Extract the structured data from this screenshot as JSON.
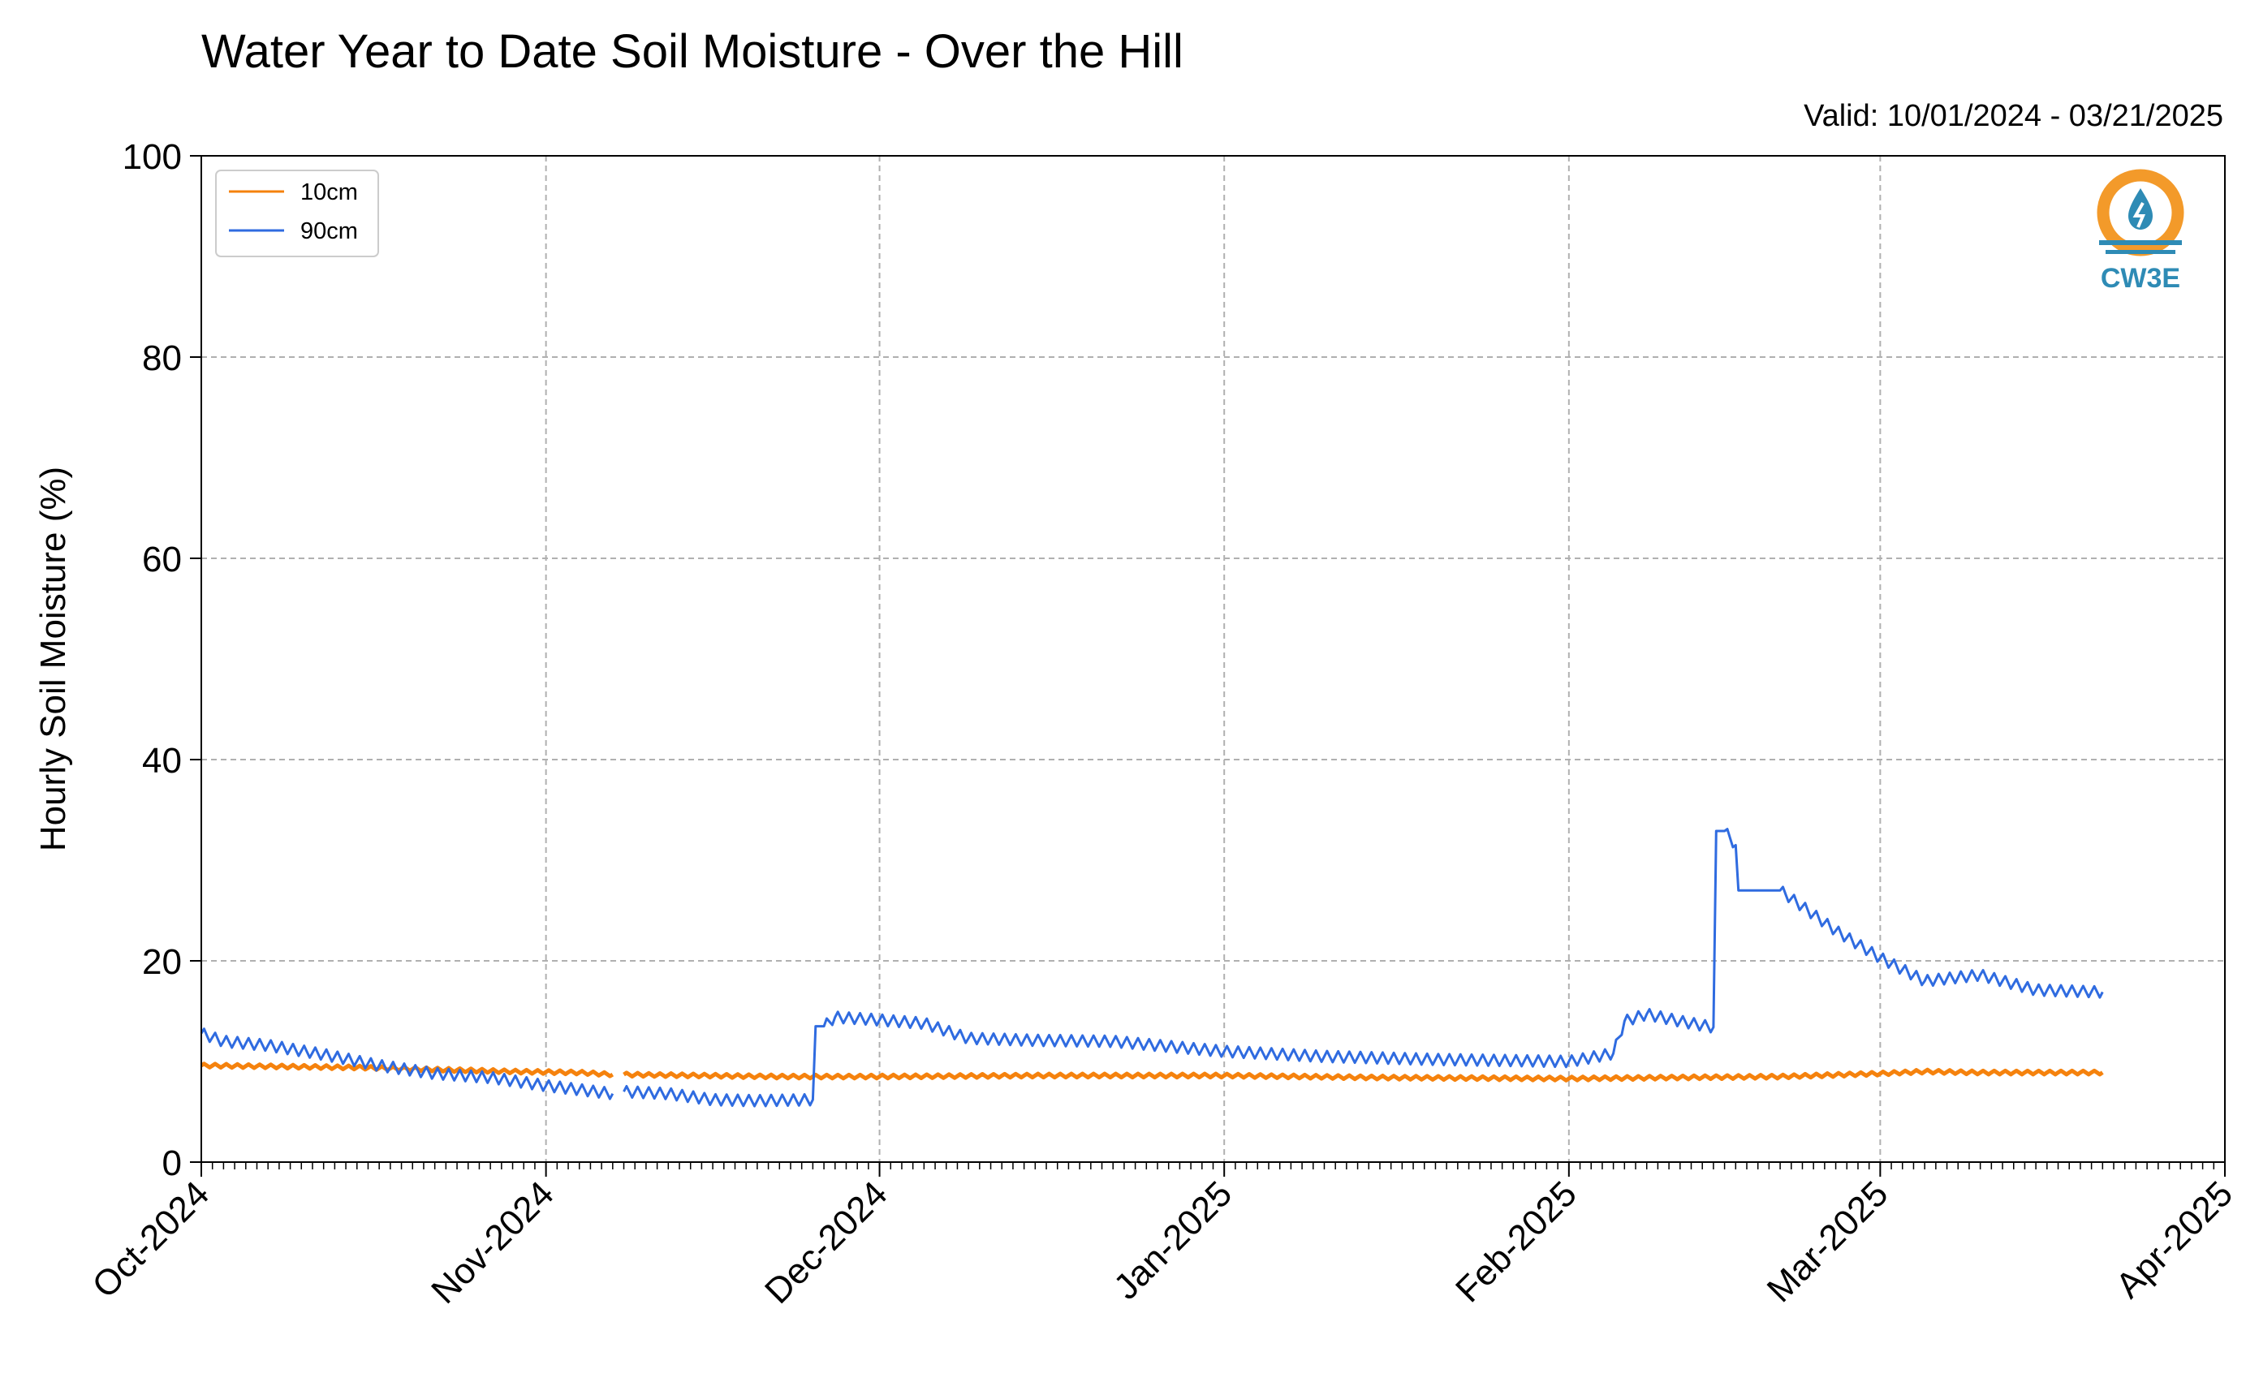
{
  "title": "Water Year to Date Soil Moisture - Over the Hill",
  "subtitle": "Valid: 10/01/2024 - 03/21/2025",
  "logo": {
    "text": "CW3E",
    "ring_color": "#F39A2A",
    "drop_color": "#2E8BB5"
  },
  "chart_data": {
    "type": "line",
    "title": "Water Year to Date Soil Moisture - Over the Hill",
    "ylabel": "Hourly Soil Moisture (%)",
    "xlabel": "",
    "ylim": [
      0,
      100
    ],
    "yticks": [
      0,
      20,
      40,
      60,
      80,
      100
    ],
    "xlim": [
      "2024-10-01",
      "2025-04-01"
    ],
    "xticks": [
      {
        "date": "2024-10-01",
        "label": "Oct-2024"
      },
      {
        "date": "2024-11-01",
        "label": "Nov-2024"
      },
      {
        "date": "2024-12-01",
        "label": "Dec-2024"
      },
      {
        "date": "2025-01-01",
        "label": "Jan-2025"
      },
      {
        "date": "2025-02-01",
        "label": "Feb-2025"
      },
      {
        "date": "2025-03-01",
        "label": "Mar-2025"
      },
      {
        "date": "2025-04-01",
        "label": "Apr-2025"
      }
    ],
    "grid": true,
    "legend": "top-left",
    "series": [
      {
        "name": "10cm",
        "color": "#F5820D",
        "segments": [
          {
            "x": [
              "2024-10-01",
              "2024-10-08",
              "2024-10-15",
              "2024-10-22",
              "2024-10-29",
              "2024-11-04",
              "2024-11-07"
            ],
            "y": [
              9.6,
              9.5,
              9.4,
              9.2,
              9.0,
              8.9,
              8.7
            ]
          },
          {
            "x": [
              "2024-11-08",
              "2024-11-15",
              "2024-11-22",
              "2024-12-01",
              "2024-12-15",
              "2025-01-01",
              "2025-01-15",
              "2025-02-01",
              "2025-02-10",
              "2025-02-20",
              "2025-03-01",
              "2025-03-05",
              "2025-03-10",
              "2025-03-21"
            ],
            "y": [
              8.7,
              8.6,
              8.5,
              8.5,
              8.6,
              8.6,
              8.4,
              8.3,
              8.4,
              8.5,
              8.8,
              9.0,
              8.9,
              8.9
            ]
          }
        ]
      },
      {
        "name": "90cm",
        "color": "#2F6BE0",
        "segments": [
          {
            "x": [
              "2024-10-01",
              "2024-10-03",
              "2024-10-07",
              "2024-10-12",
              "2024-10-17",
              "2024-10-22",
              "2024-10-27",
              "2024-11-01",
              "2024-11-04",
              "2024-11-07"
            ],
            "y": [
              12.8,
              12.0,
              11.6,
              10.7,
              9.6,
              8.8,
              8.4,
              7.6,
              7.2,
              6.8
            ]
          },
          {
            "x": [
              "2024-11-08",
              "2024-11-12",
              "2024-11-16",
              "2024-11-20",
              "2024-11-25",
              "2024-11-26",
              "2024-11-27",
              "2024-11-30",
              "2024-12-05",
              "2024-12-09",
              "2024-12-15",
              "2024-12-22",
              "2025-01-01",
              "2025-01-10",
              "2025-01-20",
              "2025-02-01",
              "2025-02-05",
              "2025-02-06",
              "2025-02-08",
              "2025-02-11",
              "2025-02-14",
              "2025-02-15",
              "2025-02-16",
              "2025-02-20",
              "2025-02-25",
              "2025-03-01",
              "2025-03-05",
              "2025-03-10",
              "2025-03-15",
              "2025-03-21"
            ],
            "y": [
              7.0,
              6.8,
              6.2,
              6.1,
              6.2,
              13.5,
              14.4,
              14.2,
              13.8,
              12.3,
              12.1,
              12.0,
              11.0,
              10.5,
              10.2,
              10.0,
              10.8,
              14.0,
              14.7,
              14.0,
              13.4,
              32.9,
              31.5,
              27.0,
              23.0,
              20.3,
              18.0,
              18.6,
              17.1,
              16.9
            ]
          }
        ]
      }
    ]
  }
}
